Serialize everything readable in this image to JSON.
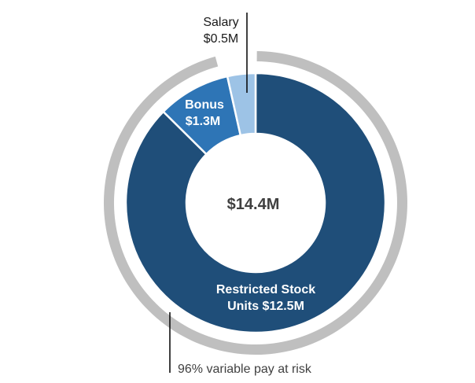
{
  "chart_data": {
    "type": "pie",
    "center_label": "$14.4M",
    "slices": [
      {
        "name": "Restricted Stock Units",
        "value": 12.5,
        "color": "#1f4e79",
        "label_lines": [
          "Restricted Stock",
          "Units $12.5M"
        ]
      },
      {
        "name": "Bonus",
        "value": 1.3,
        "color": "#2e75b6",
        "label_lines": [
          "Bonus",
          "$1.3M"
        ]
      },
      {
        "name": "Salary",
        "value": 0.5,
        "color": "#9dc3e6",
        "label_lines": [
          "Salary",
          "$0.5M"
        ]
      }
    ],
    "outer_ring": {
      "label": "96% variable pay at risk",
      "percent": 96,
      "color": "#bfbfbf"
    }
  }
}
